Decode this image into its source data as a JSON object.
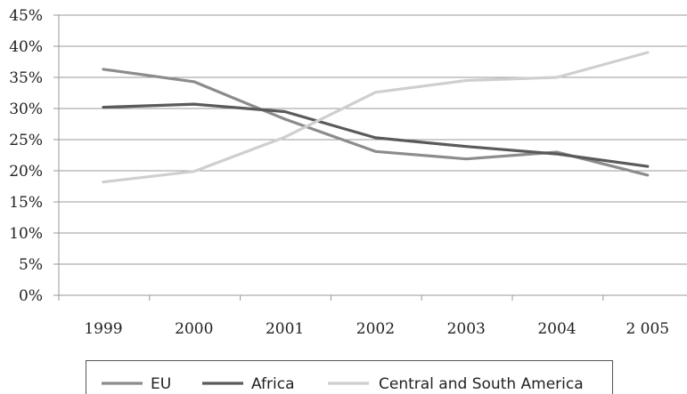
{
  "chart_data": {
    "type": "line",
    "title": "",
    "xlabel": "",
    "ylabel": "",
    "categories": [
      "1999",
      "2000",
      "2001",
      "2002",
      "2003",
      "2004",
      "2 005"
    ],
    "y_ticks": [
      "0%",
      "5%",
      "10%",
      "15%",
      "20%",
      "25%",
      "30%",
      "35%",
      "40%",
      "45%"
    ],
    "ylim": [
      0,
      45
    ],
    "grid": true,
    "legend_position": "bottom",
    "series": [
      {
        "name": "EU",
        "color": "#8c8c8c",
        "values": [
          36.3,
          34.3,
          28.3,
          23.1,
          21.9,
          23.0,
          19.3
        ]
      },
      {
        "name": "Africa",
        "color": "#5a5a5a",
        "values": [
          30.2,
          30.7,
          29.5,
          25.3,
          23.9,
          22.7,
          20.7
        ]
      },
      {
        "name": "Central and South America",
        "color": "#cfcfcf",
        "values": [
          18.2,
          19.9,
          25.4,
          32.6,
          34.5,
          35.0,
          39.0
        ]
      }
    ]
  }
}
